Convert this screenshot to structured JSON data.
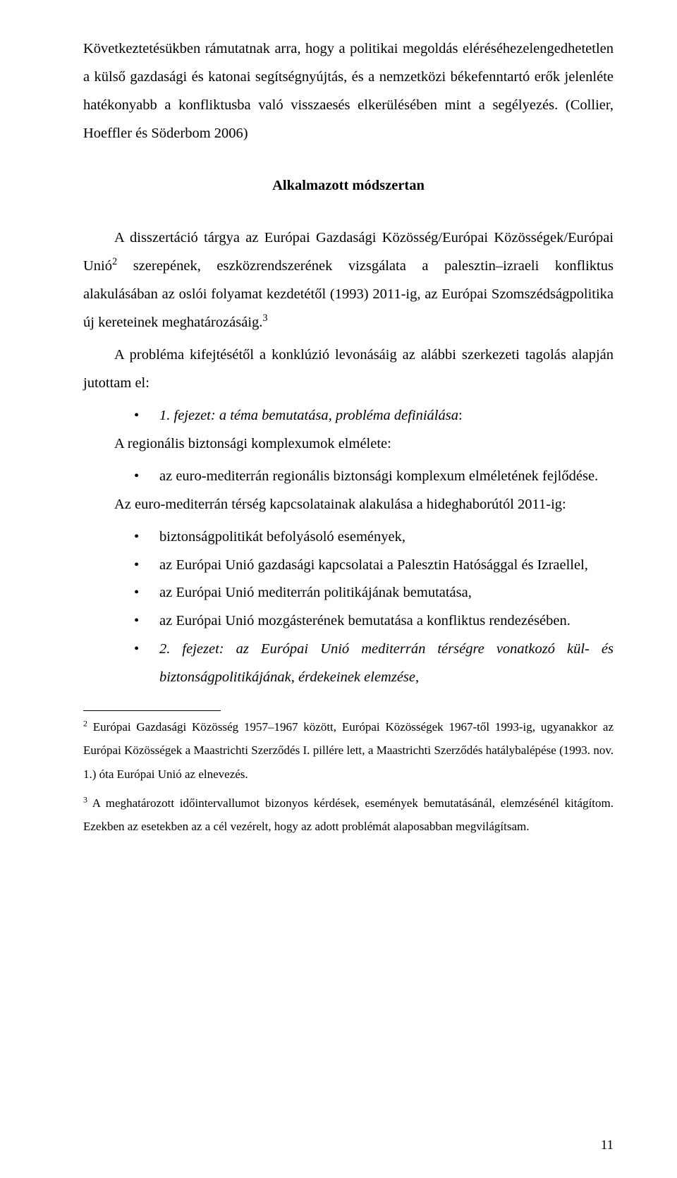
{
  "p1": "Következtetésükben rámutatnak arra, hogy a politikai megoldás eléréséhezelengedhetetlen a külső gazdasági és katonai segítségnyújtás, és a nemzetközi békefenntartó erők jelenléte hatékonyabb a konfliktusba való visszaesés elkerülésében mint a segélyezés. (Collier, Hoeffler és Söderbom 2006)",
  "heading": "Alkalmazott módszertan",
  "p2_a": "A disszertáció tárgya az Európai Gazdasági Közösség/Európai Közösségek/Európai Unió",
  "p2_sup": "2",
  "p2_b": " szerepének, eszközrendszerének vizsgálata a palesztin–izraeli konfliktus alakulásában az oslói folyamat kezdetétől (1993) 2011-ig, az Európai Szomszédságpolitika új kereteinek meghatározásáig.",
  "p2_sup2": "3",
  "p3": "A probléma kifejtésétől a konklúzió levonásáig az alábbi szerkezeti tagolás alapján jutottam el:",
  "b1_pre": "1. fejezet: a téma bemutatása, probléma definiálása",
  "b1_post": ":",
  "p4": "A regionális biztonsági komplexumok elmélete:",
  "b2": "az euro-mediterrán regionális biztonsági komplexum elméletének fejlődése.",
  "p5": "Az euro-mediterrán térség kapcsolatainak alakulása a hideghaborútól 2011-ig:",
  "b3": "biztonságpolitikát befolyásoló események,",
  "b4": "az Európai Unió gazdasági kapcsolatai a Palesztin Hatósággal és Izraellel,",
  "b5": "az Európai Unió mediterrán politikájának bemutatása,",
  "b6": "az Európai Unió mozgásterének bemutatása a konfliktus rendezésében.",
  "b7_pre": "2. fejezet: az Európai Unió mediterrán térségre vonatkozó kül- és biztonságpolitikájának, érdekeinek elemzése",
  "b7_post": ",",
  "fn1_sup": "2",
  "fn1": " Európai Gazdasági Közösség 1957–1967 között, Európai Közösségek 1967-től 1993-ig, ugyanakkor az Európai Közösségek a Maastrichti Szerződés I. pillére lett, a Maastrichti Szerződés hatálybalépése (1993. nov. 1.) óta Európai Unió az elnevezés.",
  "fn2_sup": "3",
  "fn2": " A meghatározott időintervallumot bizonyos kérdések, események bemutatásánál, elemzésénél kitágítom. Ezekben az esetekben az a cél vezérelt, hogy az adott problémát alaposabban megvilágítsam.",
  "page_number": "11"
}
